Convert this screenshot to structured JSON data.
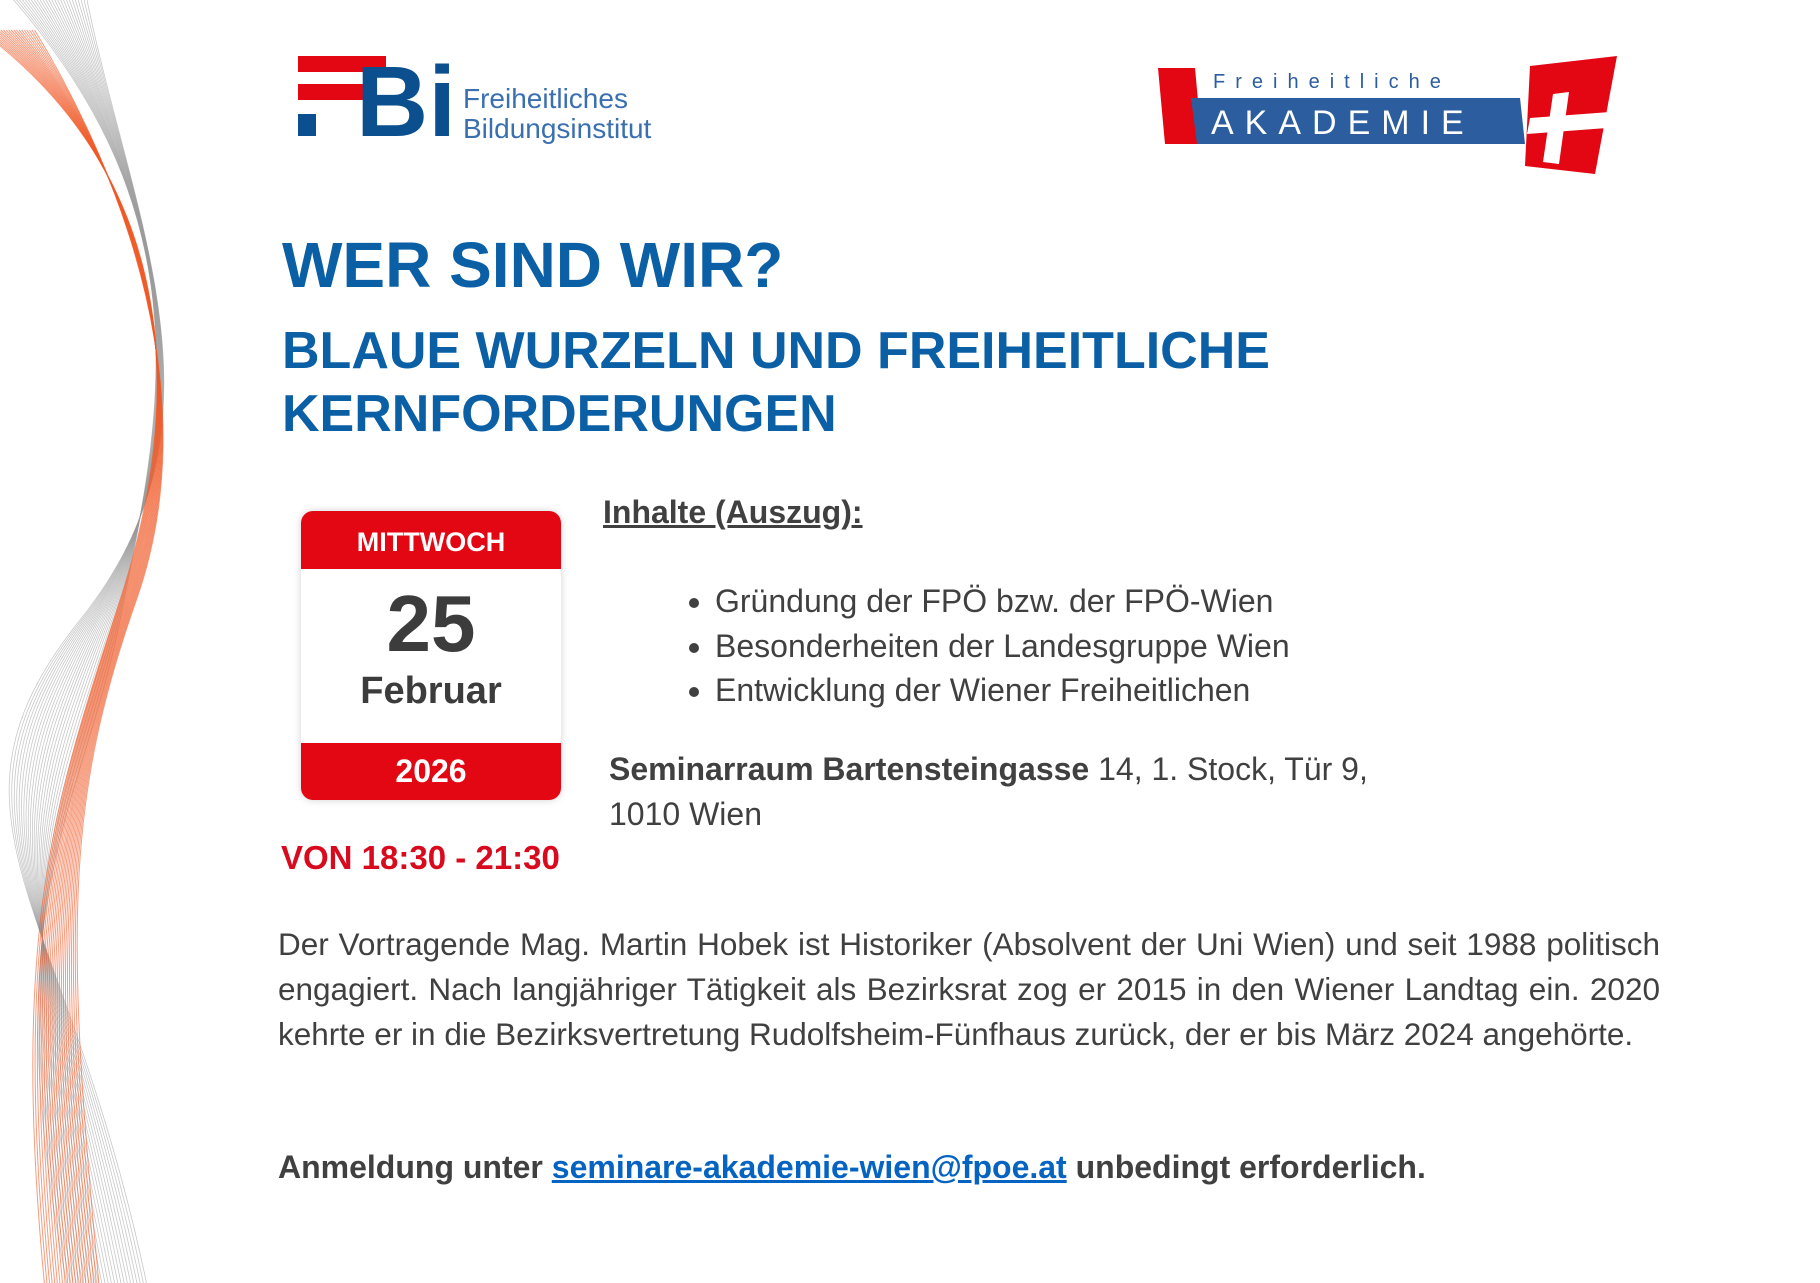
{
  "logo_left": {
    "mark": "Bi",
    "line1": "Freiheitliches",
    "line2": "Bildungsinstitut"
  },
  "logo_right": {
    "top": "Freiheitliche",
    "main": "AKADEMIE"
  },
  "header": {
    "title": "WER SIND WIR?",
    "subtitle_line1": "BLAUE WURZELN UND FREIHEITLICHE",
    "subtitle_line2": "KERNFORDERUNGEN"
  },
  "calendar": {
    "weekday": "MITTWOCH",
    "day": "25",
    "month": "Februar",
    "year": "2026",
    "time": "VON 18:30 - 21:30"
  },
  "contents": {
    "heading": "Inhalte (Auszug):",
    "items": [
      "Gründung der FPÖ bzw. der FPÖ-Wien",
      "Besonderheiten der Landesgruppe Wien",
      "Entwicklung der Wiener Freiheitlichen"
    ]
  },
  "location": {
    "bold": "Seminarraum Bartensteingasse",
    "rest": "14, 1. Stock, Tür 9,",
    "line2": "1010 Wien"
  },
  "speaker": "Der Vortragende Mag. Martin Hobek ist Historiker (Absolvent der Uni Wien) und seit 1988 politisch engagiert. Nach langjähriger Tätigkeit als Bezirksrat zog er 2015 in den Wiener Landtag ein. 2020 kehrte er in die Bezirksvertretung Rudolfsheim-Fünfhaus zurück, der er bis März 2024 angehörte.",
  "registration": {
    "prefix": "Anmeldung unter",
    "email": "seminare-akademie-wien@fpoe.at",
    "suffix": "unbedingt erforderlich."
  }
}
